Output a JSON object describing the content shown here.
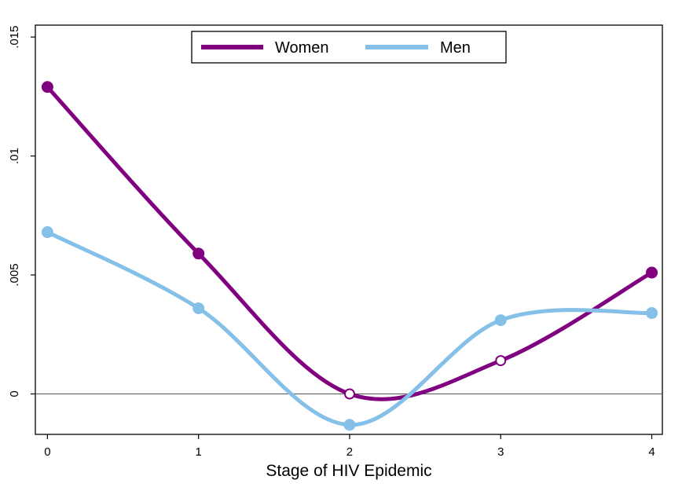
{
  "chart_data": {
    "type": "line",
    "title": "",
    "xlabel": "Stage of HIV Epidemic",
    "ylabel": "",
    "x": [
      0,
      1,
      2,
      3,
      4
    ],
    "xlim": [
      0,
      4
    ],
    "ylim": [
      0,
      0.015
    ],
    "x_ticks": [
      0,
      1,
      2,
      3,
      4
    ],
    "x_tick_labels": [
      "0",
      "1",
      "2",
      "3",
      "4"
    ],
    "y_ticks": [
      0,
      0.005,
      0.01,
      0.015
    ],
    "y_tick_labels": [
      "0",
      ".005",
      ".01",
      ".015"
    ],
    "reference_line_y": 0,
    "grid": false,
    "legend_position": "top-center",
    "series": [
      {
        "name": "Women",
        "color": "#800080",
        "values": [
          0.0129,
          0.0059,
          0.0,
          0.0014,
          0.0051
        ],
        "hollow_markers": [
          false,
          false,
          true,
          true,
          false
        ]
      },
      {
        "name": "Men",
        "color": "#85c0e9",
        "values": [
          0.0068,
          0.0036,
          -0.0013,
          0.0031,
          0.0034
        ],
        "hollow_markers": [
          false,
          false,
          false,
          false,
          false
        ]
      }
    ]
  }
}
